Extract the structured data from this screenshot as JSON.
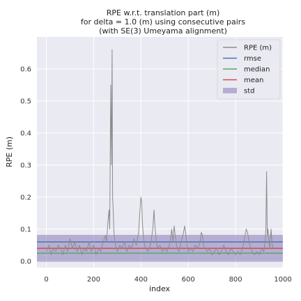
{
  "chart_data": {
    "type": "line",
    "title_lines": [
      "RPE w.r.t. translation part (m)",
      "for delta = 1.0 (m) using consecutive pairs",
      "(with SE(3) Umeyama alignment)"
    ],
    "xlabel": "index",
    "ylabel": "RPE (m)",
    "xlim": [
      -40,
      1000
    ],
    "ylim": [
      -0.02,
      0.7
    ],
    "xticks": [
      0,
      200,
      400,
      600,
      800,
      1000
    ],
    "yticks": [
      0.0,
      0.1,
      0.2,
      0.3,
      0.4,
      0.5,
      0.6
    ],
    "ytick_labels": [
      "0.0",
      "0.1",
      "0.2",
      "0.3",
      "0.4",
      "0.5",
      "0.6"
    ],
    "grid": true,
    "legend_position": "top-right",
    "legend": [
      "RPE (m)",
      "rmse",
      "median",
      "mean",
      "std"
    ],
    "series": [
      {
        "name": "RPE (m)",
        "color": "#8c8c8c",
        "x": [
          0,
          10,
          20,
          30,
          40,
          50,
          60,
          70,
          80,
          90,
          100,
          110,
          120,
          130,
          140,
          150,
          160,
          170,
          180,
          190,
          200,
          210,
          220,
          230,
          240,
          250,
          255,
          260,
          265,
          268,
          272,
          275,
          278,
          280,
          283,
          285,
          288,
          292,
          296,
          300,
          310,
          320,
          330,
          340,
          350,
          360,
          370,
          380,
          390,
          395,
          400,
          403,
          406,
          410,
          415,
          420,
          430,
          440,
          450,
          455,
          458,
          461,
          465,
          470,
          480,
          490,
          500,
          510,
          520,
          525,
          530,
          535,
          540,
          545,
          550,
          555,
          560,
          570,
          580,
          585,
          590,
          595,
          600,
          610,
          620,
          630,
          640,
          650,
          655,
          660,
          665,
          670,
          680,
          690,
          700,
          710,
          720,
          730,
          740,
          750,
          760,
          770,
          780,
          790,
          800,
          810,
          820,
          830,
          840,
          845,
          850,
          855,
          860,
          870,
          880,
          890,
          900,
          910,
          920,
          925,
          928,
          931,
          934,
          937,
          940,
          945,
          950,
          955,
          960
        ],
        "values": [
          0.03,
          0.05,
          0.02,
          0.04,
          0.03,
          0.05,
          0.04,
          0.02,
          0.05,
          0.03,
          0.07,
          0.04,
          0.06,
          0.03,
          0.05,
          0.02,
          0.04,
          0.03,
          0.06,
          0.03,
          0.05,
          0.02,
          0.04,
          0.03,
          0.06,
          0.08,
          0.06,
          0.12,
          0.16,
          0.1,
          0.55,
          0.3,
          0.66,
          0.2,
          0.15,
          0.1,
          0.07,
          0.05,
          0.04,
          0.03,
          0.05,
          0.04,
          0.06,
          0.03,
          0.05,
          0.04,
          0.07,
          0.05,
          0.09,
          0.15,
          0.2,
          0.18,
          0.12,
          0.08,
          0.05,
          0.04,
          0.03,
          0.05,
          0.1,
          0.16,
          0.12,
          0.09,
          0.06,
          0.04,
          0.05,
          0.03,
          0.04,
          0.03,
          0.05,
          0.07,
          0.1,
          0.06,
          0.11,
          0.08,
          0.05,
          0.04,
          0.03,
          0.06,
          0.09,
          0.11,
          0.08,
          0.05,
          0.03,
          0.04,
          0.03,
          0.05,
          0.04,
          0.06,
          0.09,
          0.08,
          0.05,
          0.04,
          0.03,
          0.04,
          0.02,
          0.03,
          0.04,
          0.02,
          0.03,
          0.05,
          0.03,
          0.02,
          0.04,
          0.03,
          0.02,
          0.03,
          0.02,
          0.04,
          0.08,
          0.1,
          0.09,
          0.07,
          0.05,
          0.03,
          0.02,
          0.03,
          0.02,
          0.04,
          0.03,
          0.06,
          0.1,
          0.28,
          0.08,
          0.1,
          0.07,
          0.04,
          0.1,
          0.05,
          0.04
        ]
      }
    ],
    "stats": {
      "rmse": 0.06,
      "median": 0.025,
      "mean": 0.04,
      "std": 0.042
    },
    "colors": {
      "plot_bg": "#eaeaf2",
      "grid": "#ffffff",
      "rpe": "#8c8c8c",
      "rmse": "#4c72b0",
      "median": "#55a868",
      "mean": "#c44e52",
      "std": "#8172b2"
    }
  }
}
